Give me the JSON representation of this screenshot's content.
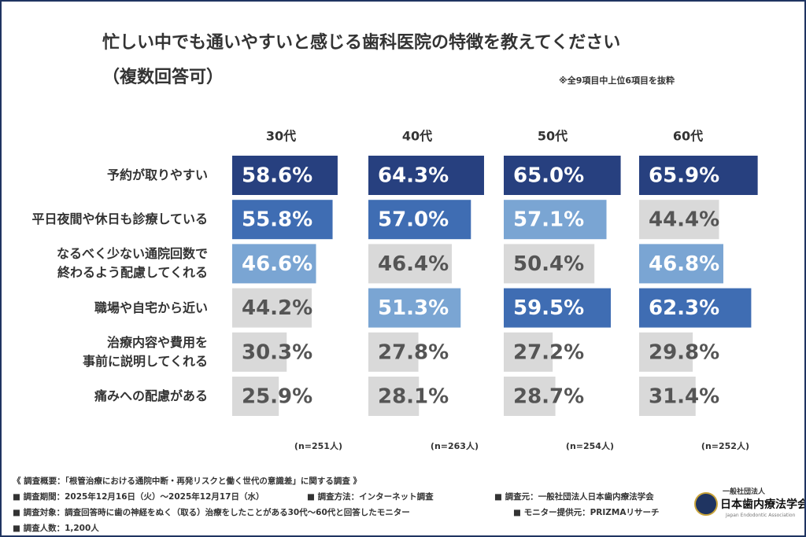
{
  "title": "忙しい中でも通いやすいと感じる歯科医院の特徴を教えてください",
  "subtitle": "（複数回答可）",
  "note": "※全9項目中上位6項目を抜粋",
  "chart_data": {
    "type": "bar",
    "orientation": "horizontal",
    "categories": [
      "予約が取りやすい",
      "平日夜間や休日も診療している",
      "なるべく少ない通院回数で\n終わるよう配慮してくれる",
      "職場や自宅から近い",
      "治療内容や費用を\n事前に説明してくれる",
      "痛みへの配慮がある"
    ],
    "xlim": [
      0,
      70
    ],
    "series": [
      {
        "name": "30代",
        "sample": "(n=251人)",
        "values": [
          58.6,
          55.8,
          46.6,
          44.2,
          30.3,
          25.9
        ],
        "value_labels": [
          "58.6%",
          "55.8%",
          "46.6%",
          "44.2%",
          "30.3%",
          "25.9%"
        ],
        "colors": [
          "#27407f",
          "#3f6db3",
          "#7aa5d3",
          "#d9d9d9",
          "#d9d9d9",
          "#d9d9d9"
        ]
      },
      {
        "name": "40代",
        "sample": "(n=263人)",
        "values": [
          64.3,
          57.0,
          46.4,
          51.3,
          27.8,
          28.1
        ],
        "value_labels": [
          "64.3%",
          "57.0%",
          "46.4%",
          "51.3%",
          "27.8%",
          "28.1%"
        ],
        "colors": [
          "#27407f",
          "#3f6db3",
          "#d9d9d9",
          "#7aa5d3",
          "#d9d9d9",
          "#d9d9d9"
        ]
      },
      {
        "name": "50代",
        "sample": "(n=254人)",
        "values": [
          65.0,
          57.1,
          50.4,
          59.5,
          27.2,
          28.7
        ],
        "value_labels": [
          "65.0%",
          "57.1%",
          "50.4%",
          "59.5%",
          "27.2%",
          "28.7%"
        ],
        "colors": [
          "#27407f",
          "#7aa5d3",
          "#d9d9d9",
          "#3f6db3",
          "#d9d9d9",
          "#d9d9d9"
        ]
      },
      {
        "name": "60代",
        "sample": "(n=252人)",
        "values": [
          65.9,
          44.4,
          46.8,
          62.3,
          29.8,
          31.4
        ],
        "value_labels": [
          "65.9%",
          "44.4%",
          "46.8%",
          "62.3%",
          "29.8%",
          "31.4%"
        ],
        "colors": [
          "#27407f",
          "#d9d9d9",
          "#7aa5d3",
          "#3f6db3",
          "#d9d9d9",
          "#d9d9d9"
        ]
      }
    ]
  },
  "footer": {
    "lines": [
      "《 調査概要：「根管治療における通院中断・再発リスクと働く世代の意識差」に関する調査 》",
      "■ 調査期間：2025年12月16日（火）〜2025年12月17日（水）",
      "■ 調査方法：インターネット調査",
      "■ 調査元：一般社団法人日本歯内療法学会",
      "■ 調査対象：調査回答時に歯の神経をぬく（取る）治療をしたことがある30代〜60代と回答したモニター",
      "■ モニター提供元：PRIZMAリサーチ",
      "■ 調査人数：1,200人"
    ],
    "logo": {
      "org_type": "一般社団法人",
      "name": "日本歯内療法学会",
      "english": "Japan Endodontic Association"
    }
  }
}
